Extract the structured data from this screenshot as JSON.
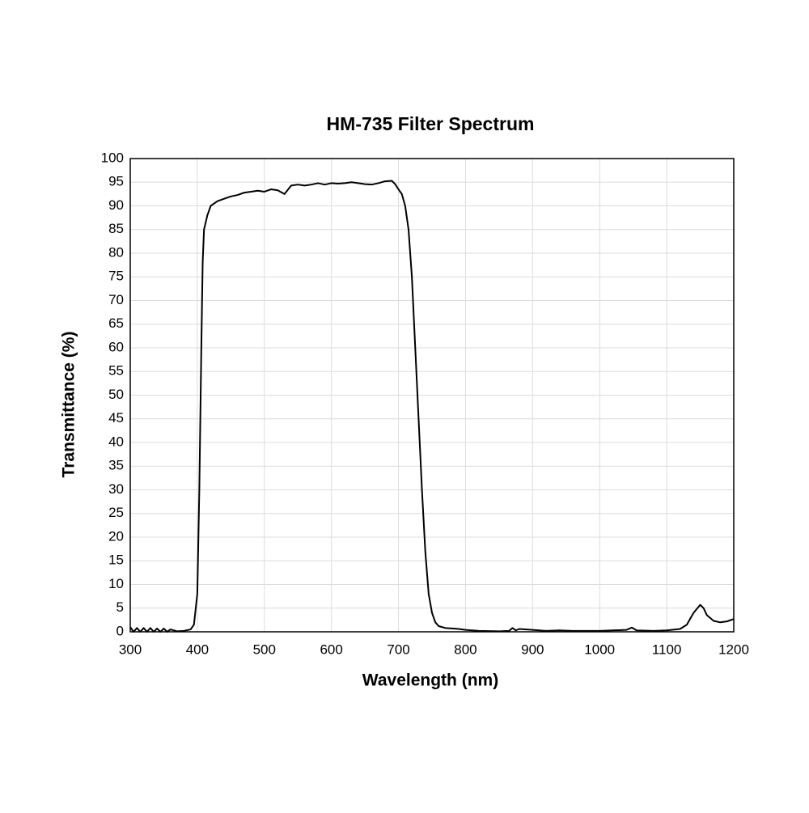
{
  "chart_data": {
    "type": "line",
    "title": "HM-735 Filter Spectrum",
    "x_label": "Wavelength (nm)",
    "y_label": "Transmittance (%)",
    "x": [
      300,
      305,
      310,
      315,
      320,
      325,
      330,
      335,
      340,
      345,
      350,
      355,
      360,
      370,
      380,
      390,
      395,
      400,
      403,
      406,
      408,
      410,
      415,
      420,
      430,
      440,
      450,
      460,
      470,
      480,
      490,
      500,
      510,
      520,
      530,
      540,
      550,
      560,
      570,
      580,
      590,
      600,
      610,
      620,
      630,
      640,
      650,
      660,
      670,
      680,
      690,
      695,
      700,
      705,
      710,
      715,
      720,
      725,
      730,
      735,
      740,
      745,
      750,
      755,
      760,
      770,
      780,
      790,
      800,
      820,
      850,
      865,
      870,
      875,
      880,
      900,
      920,
      940,
      960,
      1000,
      1040,
      1048,
      1055,
      1080,
      1100,
      1120,
      1130,
      1140,
      1150,
      1155,
      1160,
      1170,
      1180,
      1190,
      1200
    ],
    "values": [
      1.0,
      0,
      0.8,
      0,
      0.8,
      0,
      0.8,
      0,
      0.7,
      0,
      0.7,
      0,
      0.5,
      0.1,
      0.2,
      0.5,
      1.5,
      8,
      30,
      60,
      78,
      85,
      88,
      90,
      91,
      91.5,
      92,
      92.3,
      92.8,
      93,
      93.2,
      93,
      93.5,
      93.3,
      92.5,
      94.3,
      94.5,
      94.3,
      94.5,
      94.8,
      94.5,
      94.8,
      94.7,
      94.8,
      95,
      94.8,
      94.6,
      94.5,
      94.8,
      95.2,
      95.3,
      94.6,
      93.5,
      92.5,
      90,
      85,
      75,
      60,
      45,
      30,
      17,
      8,
      4,
      2,
      1.2,
      0.8,
      0.7,
      0.6,
      0.4,
      0.2,
      0.1,
      0.2,
      0.8,
      0.3,
      0.6,
      0.4,
      0.2,
      0.3,
      0.2,
      0.2,
      0.4,
      0.9,
      0.3,
      0.2,
      0.3,
      0.6,
      1.5,
      4,
      5.7,
      5,
      3.5,
      2.3,
      2,
      2.2,
      2.7
    ],
    "color": "#000000",
    "xlim": [
      300,
      1200
    ],
    "xticks": [
      300,
      400,
      500,
      600,
      700,
      800,
      900,
      1000,
      1100,
      1200
    ],
    "ylim": [
      0,
      100
    ],
    "yticks": [
      0,
      5,
      10,
      15,
      20,
      25,
      30,
      35,
      40,
      45,
      50,
      55,
      60,
      65,
      70,
      75,
      80,
      85,
      90,
      95,
      100
    ],
    "grid": true
  }
}
